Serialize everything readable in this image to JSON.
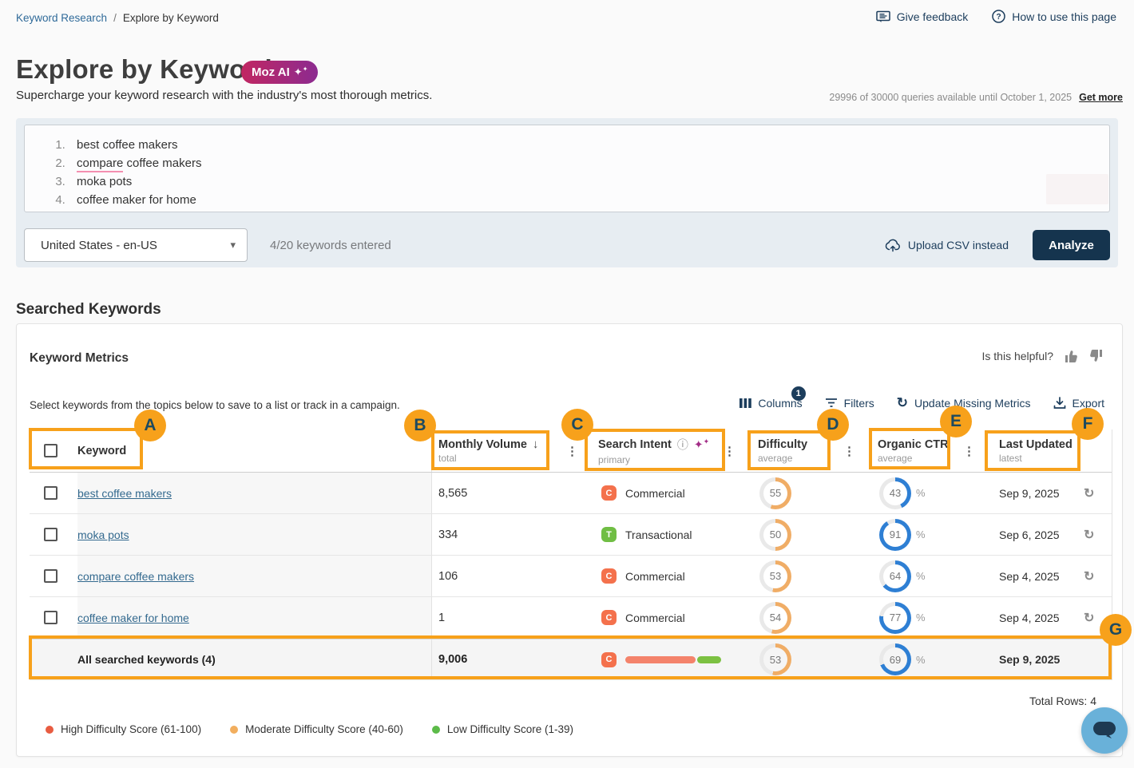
{
  "breadcrumb": {
    "parent": "Keyword Research",
    "separator": "/",
    "current": "Explore by Keyword"
  },
  "top_links": {
    "give_feedback": "Give feedback",
    "how_to_use": "How to use this page"
  },
  "header": {
    "title": "Explore by Keyword",
    "badge_label": "Moz AI",
    "subtitle": "Supercharge your keyword research with the industry's most thorough metrics.",
    "quota_text": "29996 of 30000 queries available until October 1, 2025",
    "get_more_label": "Get more"
  },
  "keyword_input": {
    "keywords": [
      "best coffee makers",
      "compare coffee makers",
      "moka pots",
      "coffee maker for home"
    ],
    "misspelled_word": "compare",
    "locale_value": "United States - en-US",
    "counter_text": "4/20 keywords entered",
    "upload_label": "Upload CSV instead",
    "analyze_label": "Analyze"
  },
  "section_heading": "Searched Keywords",
  "metrics_card": {
    "title": "Keyword Metrics",
    "helpful_prompt": "Is this helpful?",
    "description": "Select keywords from the topics below to save to a list or track in a campaign.",
    "toolbar": {
      "columns_label": "Columns",
      "columns_badge": "1",
      "filters_label": "Filters",
      "update_label": "Update Missing Metrics",
      "export_label": "Export"
    },
    "total_rows_text": "Total Rows: 4"
  },
  "table": {
    "headers": {
      "keyword": {
        "label": "Keyword"
      },
      "monthly_volume": {
        "label": "Monthly Volume",
        "sub": "total"
      },
      "search_intent": {
        "label": "Search Intent",
        "sub": "primary"
      },
      "difficulty": {
        "label": "Difficulty",
        "sub": "average"
      },
      "organic_ctr": {
        "label": "Organic CTR",
        "sub": "average"
      },
      "last_updated": {
        "label": "Last Updated",
        "sub": "latest"
      }
    },
    "percent_suffix": "%",
    "rows": [
      {
        "keyword": "best coffee makers",
        "monthly_volume": "8,565",
        "intent": "Commercial",
        "intent_letter": "C",
        "difficulty": 55,
        "organic_ctr": 43,
        "last_updated": "Sep 9, 2025"
      },
      {
        "keyword": "moka pots",
        "monthly_volume": "334",
        "intent": "Transactional",
        "intent_letter": "T",
        "difficulty": 50,
        "organic_ctr": 91,
        "last_updated": "Sep 6, 2025"
      },
      {
        "keyword": "compare coffee makers",
        "monthly_volume": "106",
        "intent": "Commercial",
        "intent_letter": "C",
        "difficulty": 53,
        "organic_ctr": 64,
        "last_updated": "Sep 4, 2025"
      },
      {
        "keyword": "coffee maker for home",
        "monthly_volume": "1",
        "intent": "Commercial",
        "intent_letter": "C",
        "difficulty": 54,
        "organic_ctr": 77,
        "last_updated": "Sep 4, 2025"
      }
    ],
    "summary_row": {
      "label": "All searched keywords (4)",
      "monthly_volume": "9,006",
      "intent_letter": "C",
      "difficulty": 53,
      "organic_ctr": 69,
      "last_updated": "Sep 9, 2025"
    }
  },
  "legend": [
    {
      "label": "High Difficulty Score (61-100)",
      "color": "#E85C41"
    },
    {
      "label": "Moderate Difficulty Score (40-60)",
      "color": "#F2AE5E"
    },
    {
      "label": "Low Difficulty Score (1-39)",
      "color": "#5CBB49"
    }
  ],
  "annotations": [
    {
      "letter": "A"
    },
    {
      "letter": "B"
    },
    {
      "letter": "C"
    },
    {
      "letter": "D"
    },
    {
      "letter": "E"
    },
    {
      "letter": "F"
    },
    {
      "letter": "G"
    }
  ],
  "icons": {
    "kebab": "⋮",
    "sort_down": "↓",
    "info": "ⓘ",
    "refresh": "↻",
    "select_arrow": "▾",
    "sparkle": "✦",
    "sparkle_small": "✧"
  },
  "colors": {
    "annotation": "#F7A11B",
    "intent": {
      "C": "#F4714C",
      "T": "#70BE44"
    },
    "difficulty_ring": "#F0AD66",
    "ctr_ring": "#2E7FD4",
    "donut_track": "#E9E9E9",
    "summary_bar": [
      "#F4836B",
      "#7CC142"
    ],
    "accent_navy": "#1C3D5C"
  }
}
